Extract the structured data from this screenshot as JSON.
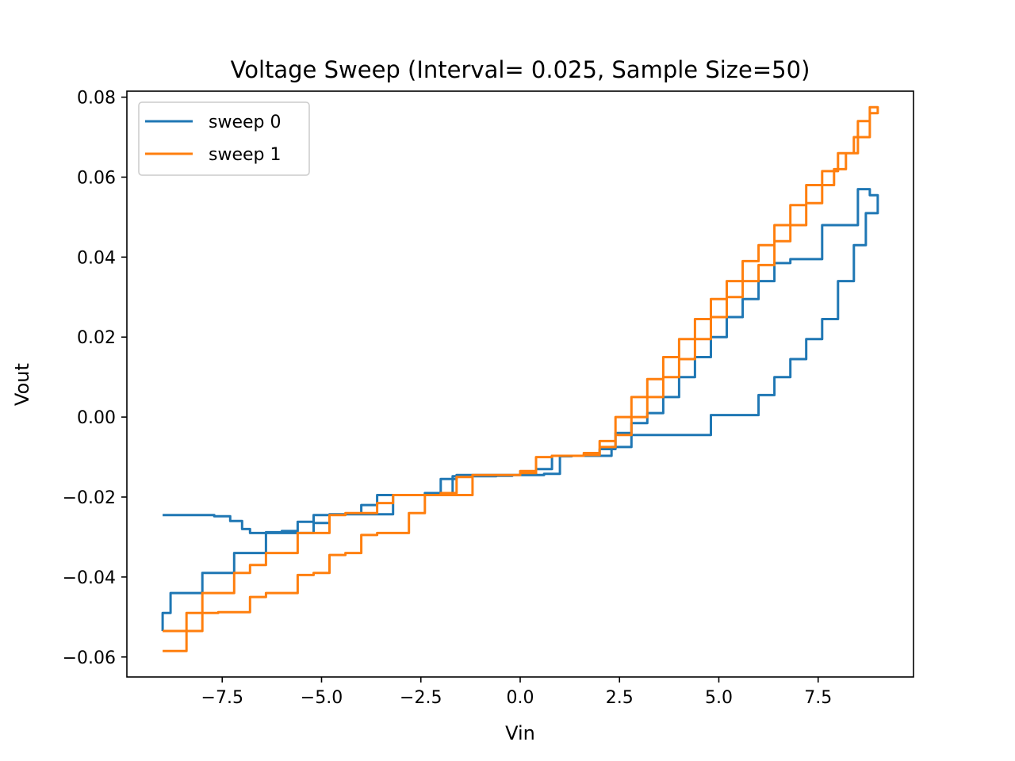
{
  "chart_data": {
    "type": "line",
    "title": "Voltage Sweep (Interval= 0.025, Sample Size=50)",
    "xlabel": "Vin",
    "ylabel": "Vout",
    "xlim": [
      -9.9,
      9.9
    ],
    "ylim": [
      -0.065,
      0.0815
    ],
    "grid": false,
    "legend": "top-left",
    "x_ticks": [
      -7.5,
      -5.0,
      -2.5,
      0.0,
      2.5,
      5.0,
      7.5
    ],
    "x_tick_labels": [
      "−7.5",
      "−5.0",
      "−2.5",
      "0.0",
      "2.5",
      "5.0",
      "7.5"
    ],
    "y_ticks": [
      -0.06,
      -0.04,
      -0.02,
      0.0,
      0.02,
      0.04,
      0.06,
      0.08
    ],
    "y_tick_labels": [
      "−0.06",
      "−0.04",
      "−0.02",
      "0.00",
      "0.02",
      "0.04",
      "0.06",
      "0.08"
    ],
    "series": [
      {
        "name": "sweep 0",
        "color": "#1f77b4",
        "x": [
          -9.0,
          -8.8,
          -8.2,
          -7.7,
          -7.3,
          -7.0,
          -6.8,
          -6.6,
          -6.4,
          -6.0,
          -5.6,
          -5.2,
          -4.8,
          -4.4,
          -4.0,
          -3.6,
          -3.2,
          -2.8,
          -2.4,
          -2.0,
          -1.7,
          -1.4,
          -1.0,
          -0.6,
          -0.2,
          0.2,
          0.6,
          1.0,
          1.3,
          1.6,
          2.0,
          2.3,
          2.8,
          3.2,
          3.6,
          4.0,
          4.4,
          4.8,
          5.2,
          5.6,
          6.0,
          6.4,
          6.8,
          7.2,
          7.6,
          8.0,
          8.4,
          8.7,
          9.0,
          8.8,
          8.5,
          8.0,
          7.6,
          7.2,
          6.8,
          6.4,
          6.0,
          5.6,
          5.2,
          4.8,
          4.4,
          4.0,
          3.6,
          3.2,
          2.8,
          2.4,
          2.0,
          1.6,
          1.2,
          0.8,
          0.4,
          0.0,
          -0.4,
          -0.8,
          -1.2,
          -1.6,
          -2.0,
          -2.4,
          -2.8,
          -3.2,
          -3.6,
          -4.0,
          -4.4,
          -4.8,
          -5.2,
          -5.6,
          -6.0,
          -6.4,
          -6.8,
          -7.2,
          -7.6,
          -8.0,
          -8.4,
          -8.8,
          -9.0
        ],
        "y": [
          -0.0245,
          -0.0245,
          -0.0245,
          -0.0248,
          -0.026,
          -0.028,
          -0.029,
          -0.029,
          -0.0288,
          -0.0285,
          -0.0262,
          -0.0245,
          -0.0243,
          -0.0243,
          -0.0243,
          -0.0243,
          -0.0195,
          -0.0195,
          -0.0195,
          -0.0195,
          -0.0148,
          -0.0148,
          -0.0148,
          -0.0147,
          -0.0145,
          -0.0145,
          -0.0142,
          -0.0098,
          -0.0097,
          -0.0097,
          -0.0097,
          -0.0075,
          -0.0045,
          -0.0045,
          -0.0045,
          -0.0045,
          -0.0045,
          0.0005,
          0.0005,
          0.0005,
          0.0055,
          0.01,
          0.0145,
          0.0195,
          0.0245,
          0.034,
          0.043,
          0.051,
          0.0555,
          0.057,
          0.048,
          0.048,
          0.0395,
          0.0395,
          0.0385,
          0.034,
          0.0295,
          0.025,
          0.02,
          0.015,
          0.01,
          0.005,
          0.001,
          -0.0015,
          -0.004,
          -0.008,
          -0.0095,
          -0.0097,
          -0.0097,
          -0.013,
          -0.0145,
          -0.0145,
          -0.0145,
          -0.0145,
          -0.0145,
          -0.0155,
          -0.019,
          -0.0195,
          -0.0195,
          -0.0195,
          -0.022,
          -0.0243,
          -0.0243,
          -0.0265,
          -0.029,
          -0.029,
          -0.029,
          -0.034,
          -0.034,
          -0.039,
          -0.039,
          -0.044,
          -0.044,
          -0.049,
          -0.0535
        ]
      },
      {
        "name": "sweep 1",
        "color": "#ff7f0e",
        "x": [
          -9.0,
          -8.7,
          -8.4,
          -8.0,
          -7.6,
          -7.2,
          -6.8,
          -6.4,
          -6.0,
          -5.6,
          -5.2,
          -4.8,
          -4.4,
          -4.0,
          -3.6,
          -3.2,
          -2.8,
          -2.4,
          -2.0,
          -1.6,
          -1.2,
          -0.8,
          -0.4,
          0.0,
          0.4,
          0.8,
          1.2,
          1.6,
          2.0,
          2.4,
          2.8,
          3.2,
          3.6,
          4.0,
          4.4,
          4.8,
          5.2,
          5.6,
          6.0,
          6.4,
          6.8,
          7.2,
          7.6,
          8.0,
          8.4,
          8.8,
          9.0,
          8.8,
          8.5,
          8.2,
          7.9,
          7.6,
          7.2,
          6.8,
          6.4,
          6.0,
          5.6,
          5.2,
          4.8,
          4.4,
          4.0,
          3.6,
          3.2,
          2.8,
          2.4,
          2.0,
          1.6,
          1.2,
          0.8,
          0.4,
          0.0,
          -0.4,
          -0.8,
          -1.2,
          -1.6,
          -2.0,
          -2.4,
          -2.8,
          -3.2,
          -3.6,
          -4.0,
          -4.4,
          -4.8,
          -5.2,
          -5.6,
          -6.0,
          -6.4,
          -6.8,
          -7.2,
          -7.6,
          -8.0,
          -8.4,
          -8.8,
          -9.0
        ],
        "y": [
          -0.0585,
          -0.0585,
          -0.0535,
          -0.049,
          -0.0488,
          -0.0488,
          -0.045,
          -0.044,
          -0.044,
          -0.0395,
          -0.039,
          -0.0345,
          -0.034,
          -0.0295,
          -0.029,
          -0.029,
          -0.024,
          -0.0195,
          -0.0195,
          -0.0195,
          -0.0145,
          -0.0145,
          -0.0145,
          -0.014,
          -0.01,
          -0.0097,
          -0.0097,
          -0.009,
          -0.006,
          0.0,
          0.005,
          0.0095,
          0.015,
          0.0195,
          0.0245,
          0.0295,
          0.034,
          0.039,
          0.043,
          0.048,
          0.053,
          0.058,
          0.0615,
          0.066,
          0.07,
          0.076,
          0.0775,
          0.074,
          0.066,
          0.062,
          0.058,
          0.0535,
          0.048,
          0.044,
          0.038,
          0.034,
          0.03,
          0.025,
          0.0195,
          0.0145,
          0.01,
          0.005,
          0.0,
          -0.0045,
          -0.0075,
          -0.0095,
          -0.0097,
          -0.0097,
          -0.01,
          -0.0135,
          -0.0145,
          -0.0145,
          -0.0145,
          -0.015,
          -0.019,
          -0.0195,
          -0.0195,
          -0.0195,
          -0.0215,
          -0.024,
          -0.024,
          -0.0245,
          -0.029,
          -0.029,
          -0.034,
          -0.034,
          -0.037,
          -0.039,
          -0.044,
          -0.044,
          -0.049,
          -0.0535,
          -0.0535,
          -0.0535
        ]
      }
    ]
  }
}
